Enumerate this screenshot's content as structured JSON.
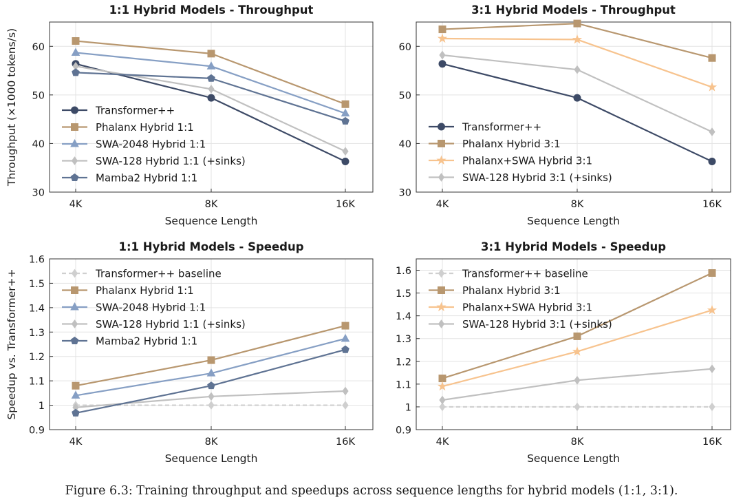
{
  "caption": "Figure 6.3: Training throughput and speedups across sequence lengths for hybrid models (1:1, 3:1).",
  "colors": {
    "transformer": "#3d4a66",
    "phalanx": "#b8976f",
    "swa2048": "#869fc4",
    "swa128": "#c0c0c0",
    "mamba2": "#5f7393",
    "phalanx_swa": "#f7c38e",
    "baseline": "#cfcfcf"
  },
  "chart_data": [
    {
      "type": "line",
      "title": "1:1 Hybrid Models - Throughput",
      "xlabel": "Sequence Length",
      "ylabel": "Throughput (×1000 tokens/s)",
      "categories": [
        "4K",
        "8K",
        "16K"
      ],
      "ylim": [
        30,
        65
      ],
      "yticks": [
        "30",
        "40",
        "50",
        "60"
      ],
      "legend_position": "bottom-left",
      "grid": true,
      "series": [
        {
          "name": "Transformer++",
          "values": [
            56.4,
            49.4,
            36.3
          ],
          "marker": "circle",
          "color": "#3d4a66"
        },
        {
          "name": "Phalanx Hybrid 1:1",
          "values": [
            61.1,
            58.5,
            48.1
          ],
          "marker": "square",
          "color": "#b8976f"
        },
        {
          "name": "SWA-2048 Hybrid 1:1",
          "values": [
            58.7,
            55.9,
            46.2
          ],
          "marker": "triangle",
          "color": "#869fc4"
        },
        {
          "name": "SWA-128 Hybrid 1:1 (+sinks)",
          "values": [
            55.9,
            51.2,
            38.4
          ],
          "marker": "diamond",
          "color": "#c0c0c0"
        },
        {
          "name": "Mamba2 Hybrid 1:1",
          "values": [
            54.6,
            53.4,
            44.6
          ],
          "marker": "pentagon",
          "color": "#5f7393"
        }
      ]
    },
    {
      "type": "line",
      "title": "3:1 Hybrid Models - Throughput",
      "xlabel": "Sequence Length",
      "ylabel": "",
      "categories": [
        "4K",
        "8K",
        "16K"
      ],
      "ylim": [
        30,
        65
      ],
      "yticks": [
        "30",
        "40",
        "50",
        "60"
      ],
      "legend_position": "bottom-left",
      "grid": true,
      "series": [
        {
          "name": "Transformer++",
          "values": [
            56.4,
            49.4,
            36.3
          ],
          "marker": "circle",
          "color": "#3d4a66"
        },
        {
          "name": "Phalanx Hybrid 3:1",
          "values": [
            63.5,
            64.7,
            57.6
          ],
          "marker": "square",
          "color": "#b8976f"
        },
        {
          "name": "Phalanx+SWA Hybrid 3:1",
          "values": [
            61.6,
            61.4,
            51.6
          ],
          "marker": "star",
          "color": "#f7c38e"
        },
        {
          "name": "SWA-128 Hybrid 3:1 (+sinks)",
          "values": [
            58.2,
            55.2,
            42.4
          ],
          "marker": "diamond",
          "color": "#c0c0c0"
        }
      ]
    },
    {
      "type": "line",
      "title": "1:1 Hybrid Models - Speedup",
      "xlabel": "Sequence Length",
      "ylabel": "Speedup vs. Transformer++",
      "categories": [
        "4K",
        "8K",
        "16K"
      ],
      "ylim": [
        0.9,
        1.6
      ],
      "yticks": [
        "0.9",
        "1",
        "1.1",
        "1.2",
        "1.3",
        "1.4",
        "1.5",
        "1.6"
      ],
      "legend_position": "top-left",
      "grid": true,
      "series": [
        {
          "name": "Transformer++ baseline",
          "values": [
            1.0,
            1.0,
            1.0
          ],
          "marker": "diamond",
          "color": "#cfcfcf",
          "dashed": true
        },
        {
          "name": "Phalanx Hybrid 1:1",
          "values": [
            1.08,
            1.185,
            1.326
          ],
          "marker": "square",
          "color": "#b8976f"
        },
        {
          "name": "SWA-2048 Hybrid 1:1",
          "values": [
            1.04,
            1.131,
            1.273
          ],
          "marker": "triangle",
          "color": "#869fc4"
        },
        {
          "name": "SWA-128 Hybrid 1:1 (+sinks)",
          "values": [
            0.991,
            1.036,
            1.058
          ],
          "marker": "diamond",
          "color": "#c0c0c0"
        },
        {
          "name": "Mamba2 Hybrid 1:1",
          "values": [
            0.968,
            1.08,
            1.228
          ],
          "marker": "pentagon",
          "color": "#5f7393"
        }
      ]
    },
    {
      "type": "line",
      "title": "3:1 Hybrid Models - Speedup",
      "xlabel": "Sequence Length",
      "ylabel": "",
      "categories": [
        "4K",
        "8K",
        "16K"
      ],
      "ylim": [
        0.9,
        1.65
      ],
      "yticks": [
        "0.9",
        "1",
        "1.1",
        "1.2",
        "1.3",
        "1.4",
        "1.5",
        "1.6"
      ],
      "legend_position": "top-left",
      "grid": true,
      "series": [
        {
          "name": "Transformer++ baseline",
          "values": [
            1.0,
            1.0,
            1.0
          ],
          "marker": "diamond",
          "color": "#cfcfcf",
          "dashed": true
        },
        {
          "name": "Phalanx Hybrid 3:1",
          "values": [
            1.125,
            1.31,
            1.588
          ],
          "marker": "square",
          "color": "#b8976f"
        },
        {
          "name": "Phalanx+SWA Hybrid 3:1",
          "values": [
            1.09,
            1.243,
            1.425
          ],
          "marker": "star",
          "color": "#f7c38e"
        },
        {
          "name": "SWA-128 Hybrid 3:1 (+sinks)",
          "values": [
            1.03,
            1.117,
            1.167
          ],
          "marker": "diamond",
          "color": "#c0c0c0"
        }
      ]
    }
  ]
}
